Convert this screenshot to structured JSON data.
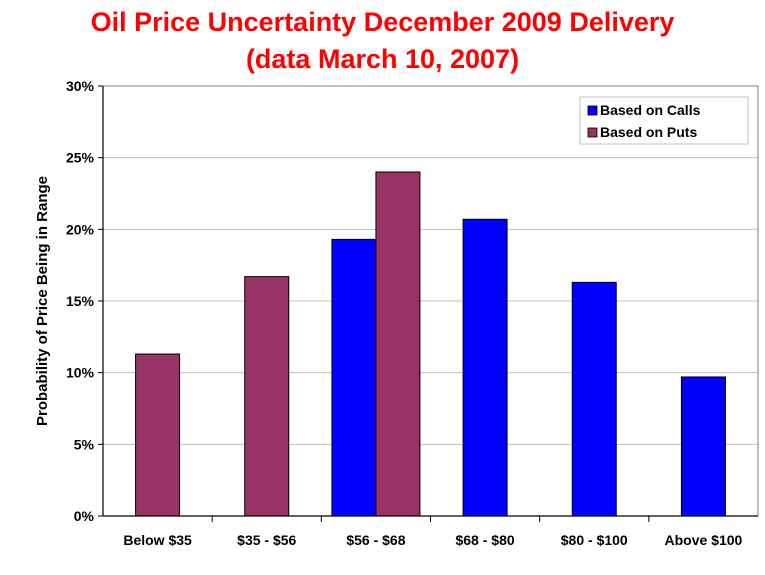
{
  "chart_data": {
    "type": "bar",
    "title_lines": [
      "Oil Price Uncertainty December 2009 Delivery",
      "(data March 10, 2007)"
    ],
    "ylabel": "Probability of Price Being in Range",
    "xlabel": "",
    "categories": [
      "Below $35",
      "$35 - $56",
      "$56 - $68",
      "$68 - $80",
      "$80 - $100",
      "Above $100"
    ],
    "series": [
      {
        "name": "Based on Calls",
        "color": "#0000ff",
        "values": [
          null,
          null,
          19.3,
          20.7,
          16.3,
          9.7
        ]
      },
      {
        "name": "Based on Puts",
        "color": "#993366",
        "values": [
          11.3,
          16.7,
          24.0,
          null,
          null,
          null
        ]
      }
    ],
    "ylim": [
      0,
      30
    ],
    "yticks": [
      0,
      5,
      10,
      15,
      20,
      25,
      30
    ],
    "ytick_labels": [
      "0%",
      "5%",
      "10%",
      "15%",
      "20%",
      "25%",
      "30%"
    ],
    "grid": true,
    "legend_position": "top-right"
  }
}
